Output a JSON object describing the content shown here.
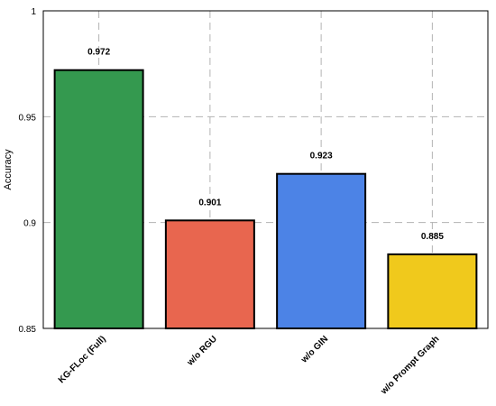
{
  "chart_data": {
    "type": "bar",
    "title": "",
    "xlabel": "",
    "ylabel": "Accuracy",
    "ylim": [
      0.85,
      1.0
    ],
    "yticks": [
      "0.85",
      "0.9",
      "0.95",
      "1"
    ],
    "grid": true,
    "categories": [
      "KG-FLoc (Full)",
      "w/o RGU",
      "w/o GIN",
      "w/o Prompt Graph"
    ],
    "values": [
      0.972,
      0.901,
      0.923,
      0.885
    ],
    "value_labels": [
      "0.972",
      "0.901",
      "0.923",
      "0.885"
    ],
    "colors": [
      "#34994f",
      "#e8664f",
      "#4c83e6",
      "#f0c91c"
    ]
  }
}
